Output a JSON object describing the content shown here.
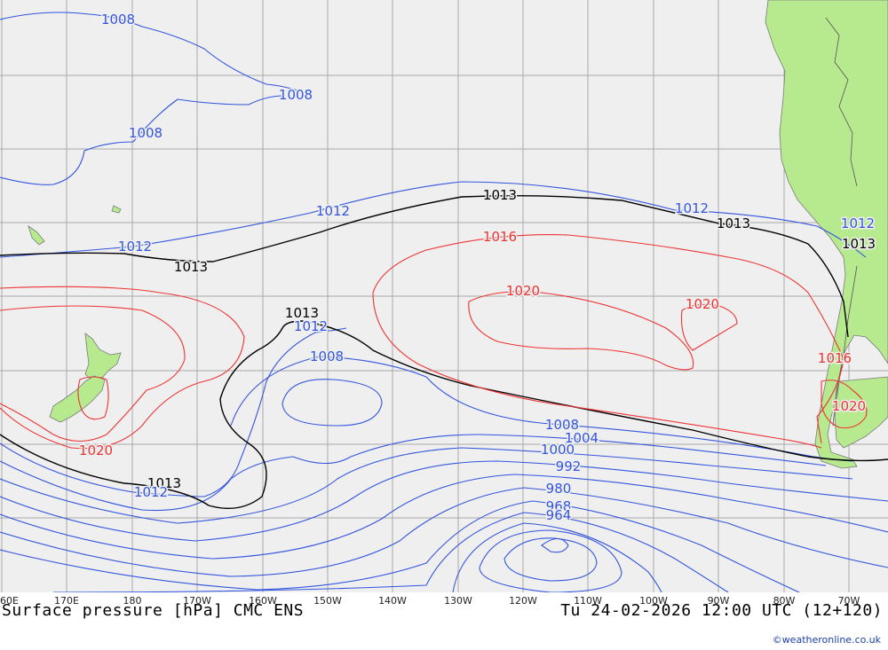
{
  "map": {
    "title": "Surface pressure [hPa] CMC ENS",
    "valid_time": "Tu 24-02-2026 12:00 UTC (12+120)",
    "credit": "©weatheronline.co.uk",
    "longitude_labels": [
      "60E",
      "170E",
      "180",
      "170W",
      "160W",
      "150W",
      "140W",
      "130W",
      "120W",
      "110W",
      "100W",
      "90W",
      "80W",
      "70W"
    ],
    "colors": {
      "background": "#efefef",
      "grid": "#a8a8a8",
      "land": "#b7ea8e",
      "coast": "#7a7a7a",
      "isobar_low": "#3355dd",
      "isobar_standard": "#000000",
      "isobar_high": "#ee3333",
      "credit": "#1a3ea8"
    },
    "isobar_labels": [
      {
        "text": "1008",
        "color": "blue"
      },
      {
        "text": "1008",
        "color": "blue"
      },
      {
        "text": "1008",
        "color": "blue"
      },
      {
        "text": "1012",
        "color": "blue"
      },
      {
        "text": "1013",
        "color": "black"
      },
      {
        "text": "1012",
        "color": "blue"
      },
      {
        "text": "1013",
        "color": "black"
      },
      {
        "text": "1012",
        "color": "blue"
      },
      {
        "text": "1013",
        "color": "black"
      },
      {
        "text": "1012",
        "color": "blue"
      },
      {
        "text": "1013",
        "color": "black"
      },
      {
        "text": "1016",
        "color": "red"
      },
      {
        "text": "1020",
        "color": "red"
      },
      {
        "text": "1020",
        "color": "red"
      },
      {
        "text": "1016",
        "color": "red"
      },
      {
        "text": "1020",
        "color": "red"
      },
      {
        "text": "1013",
        "color": "black"
      },
      {
        "text": "1012",
        "color": "blue"
      },
      {
        "text": "1008",
        "color": "blue"
      },
      {
        "text": "1020",
        "color": "red"
      },
      {
        "text": "1013",
        "color": "black"
      },
      {
        "text": "1012",
        "color": "blue"
      },
      {
        "text": "1008",
        "color": "blue"
      },
      {
        "text": "1004",
        "color": "blue"
      },
      {
        "text": "1000",
        "color": "blue"
      },
      {
        "text": "992",
        "color": "blue"
      },
      {
        "text": "980",
        "color": "blue"
      },
      {
        "text": "968",
        "color": "blue"
      },
      {
        "text": "964",
        "color": "blue"
      }
    ]
  }
}
